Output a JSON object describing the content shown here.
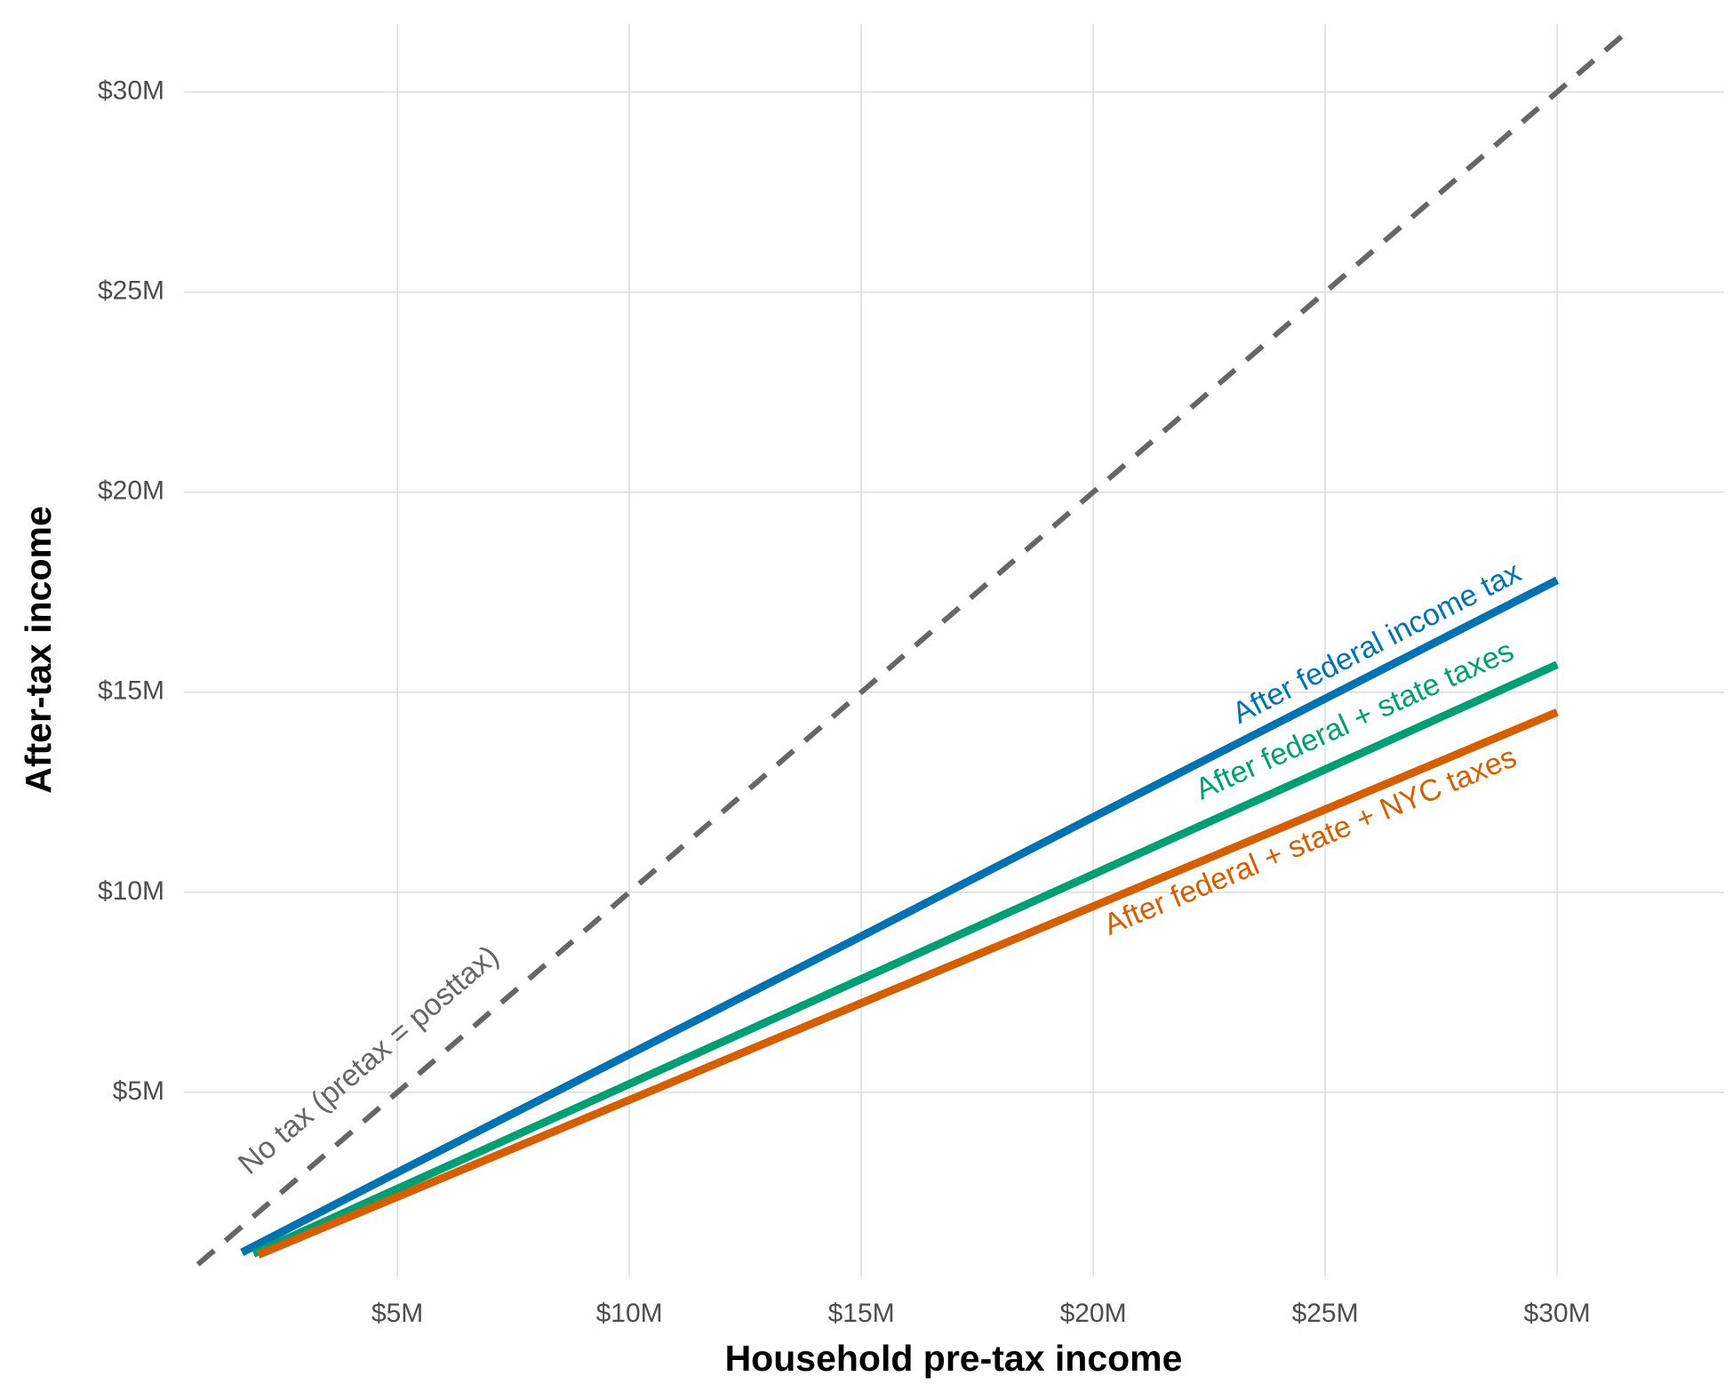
{
  "chart_data": {
    "type": "line",
    "xlabel": "Household pre-tax income",
    "ylabel": "After-tax income",
    "xlim": [
      0.4,
      33.6
    ],
    "ylim": [
      0.4,
      31.7
    ],
    "xticks": [
      {
        "value": 5,
        "label": "$5M"
      },
      {
        "value": 10,
        "label": "$10M"
      },
      {
        "value": 15,
        "label": "$15M"
      },
      {
        "value": 20,
        "label": "$20M"
      },
      {
        "value": 25,
        "label": "$25M"
      },
      {
        "value": 30,
        "label": "$30M"
      }
    ],
    "yticks": [
      {
        "value": 5,
        "label": "$5M"
      },
      {
        "value": 10,
        "label": "$10M"
      },
      {
        "value": 15,
        "label": "$15M"
      },
      {
        "value": 20,
        "label": "$20M"
      },
      {
        "value": 25,
        "label": "$25M"
      },
      {
        "value": 30,
        "label": "$30M"
      }
    ],
    "grid": true,
    "series": [
      {
        "name": "No tax (pretax = posttax)",
        "color": "#666666",
        "dashed": true,
        "x": [
          0.7,
          31.6
        ],
        "values": [
          0.7,
          31.6
        ]
      },
      {
        "name": "After federal income tax",
        "color": "#0072b2",
        "x": [
          1.65,
          5,
          10,
          15,
          20,
          25,
          30
        ],
        "values": [
          1.0,
          3.0,
          5.95,
          8.9,
          11.88,
          14.84,
          17.8
        ]
      },
      {
        "name": "After federal + state taxes",
        "color": "#009e73",
        "x": [
          1.9,
          5,
          10,
          15,
          20,
          25,
          30
        ],
        "values": [
          0.97,
          2.59,
          5.21,
          7.83,
          10.45,
          13.07,
          15.69
        ]
      },
      {
        "name": "After federal + state + NYC taxes",
        "color": "#d55e00",
        "x": [
          2,
          5,
          10,
          15,
          20,
          25,
          30
        ],
        "values": [
          0.94,
          2.39,
          4.81,
          7.23,
          9.65,
          12.07,
          14.5
        ]
      }
    ]
  }
}
